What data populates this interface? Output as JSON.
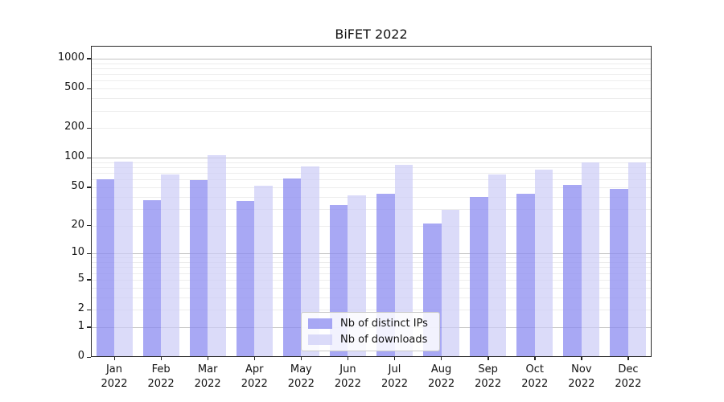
{
  "figure": {
    "title": "BiFET 2022"
  },
  "legend": {
    "items": [
      {
        "label": "Nb of distinct IPs",
        "color": "rgba(139,139,240,0.75)"
      },
      {
        "label": "Nb of downloads",
        "color": "rgba(204,204,247,0.70)"
      }
    ]
  },
  "chart_data": {
    "type": "bar",
    "title": "BiFET 2022",
    "categories": [
      "Jan",
      "Feb",
      "Mar",
      "Apr",
      "May",
      "Jun",
      "Jul",
      "Aug",
      "Sep",
      "Oct",
      "Nov",
      "Dec"
    ],
    "year": "2022",
    "series": [
      {
        "name": "Nb of distinct IPs",
        "color": "rgba(139,139,240,0.75)",
        "values": [
          60,
          37,
          59,
          36,
          61,
          33,
          43,
          21,
          40,
          43,
          53,
          48
        ]
      },
      {
        "name": "Nb of downloads",
        "color": "rgba(204,204,247,0.70)",
        "values": [
          91,
          68,
          107,
          52,
          81,
          41,
          85,
          29,
          67,
          76,
          90,
          90
        ]
      }
    ],
    "xlabel": "",
    "ylabel": "",
    "yscale": "symlog(ln(1+x))",
    "yticks": [
      0,
      1,
      2,
      5,
      10,
      20,
      50,
      100,
      200,
      500,
      1000
    ],
    "ylim": [
      0,
      1350
    ],
    "grid": true,
    "legend_position": "bottom-center"
  }
}
